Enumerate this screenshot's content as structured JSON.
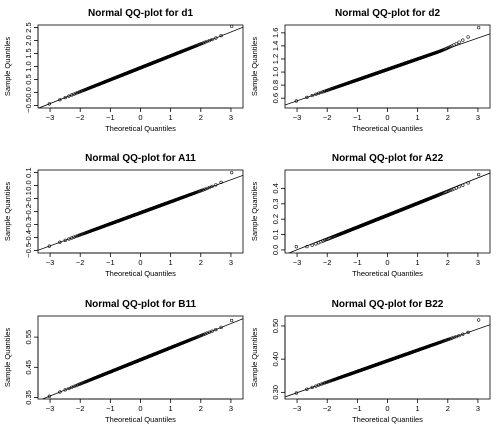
{
  "chart_data": [
    {
      "type": "scatter",
      "title": "Normal QQ-plot for d1",
      "xlabel": "Theoretical Quantiles",
      "ylabel": "Sample Quantiles",
      "xlim": [
        -3.4,
        3.4
      ],
      "ylim": [
        -0.6,
        2.6
      ],
      "xticks": [
        -3,
        -2,
        -1,
        0,
        1,
        2,
        3
      ],
      "yticks": [
        -0.5,
        0,
        0.5,
        1,
        1.5,
        2,
        2.5
      ],
      "ytick_labels": [
        "-0.5",
        "0.0",
        "0.5",
        "1.0",
        "1.5",
        "2.0",
        "2.5"
      ],
      "reference_line": {
        "intercept": 0.95,
        "slope": 0.46
      },
      "points": {
        "n": 400,
        "x_range": [
          -3.3,
          3.3
        ],
        "y_range": [
          -0.5,
          2.5
        ],
        "center": 0.95,
        "scale": 0.46,
        "lower_floor": -0.45,
        "upper_tail_start": 2.45,
        "upper_tail_bend": 0.15,
        "extreme_high": 2.55
      }
    },
    {
      "type": "scatter",
      "title": "Normal QQ-plot for d2",
      "xlabel": "Theoretical Quantiles",
      "ylabel": "Sample Quantiles",
      "xlim": [
        -3.4,
        3.4
      ],
      "ylim": [
        0.45,
        1.72
      ],
      "xticks": [
        -3,
        -2,
        -1,
        0,
        1,
        2,
        3
      ],
      "yticks": [
        0.6,
        0.8,
        1.0,
        1.2,
        1.4,
        1.6
      ],
      "ytick_labels": [
        "0.6",
        "0.8",
        "1.0",
        "1.2",
        "1.4",
        "1.6"
      ],
      "reference_line": {
        "intercept": 1.04,
        "slope": 0.16
      },
      "points": {
        "n": 400,
        "x_range": [
          -3.3,
          3.3
        ],
        "y_range": [
          0.5,
          1.65
        ],
        "center": 1.04,
        "scale": 0.16,
        "lower_floor": 0.52,
        "upper_tail_start": 1.6,
        "upper_tail_bend": 0.12,
        "extreme_high": 1.68
      }
    },
    {
      "type": "scatter",
      "title": "Normal QQ-plot for A11",
      "xlabel": "Theoretical Quantiles",
      "ylabel": "Sample Quantiles",
      "xlim": [
        -3.4,
        3.4
      ],
      "ylim": [
        -0.52,
        0.12
      ],
      "xticks": [
        -3,
        -2,
        -1,
        0,
        1,
        2,
        3
      ],
      "yticks": [
        -0.5,
        -0.4,
        -0.3,
        -0.2,
        -0.1,
        0,
        0.1
      ],
      "ytick_labels": [
        "-0.5",
        "-0.4",
        "-0.3",
        "-0.2",
        "-0.1",
        "0.0",
        "0.1"
      ],
      "reference_line": {
        "intercept": -0.21,
        "slope": 0.085
      },
      "points": {
        "n": 400,
        "x_range": [
          -3.3,
          3.3
        ],
        "y_range": [
          -0.5,
          0.1
        ],
        "center": -0.21,
        "scale": 0.085,
        "lower_floor": -0.475,
        "upper_tail_start": 2.1,
        "upper_tail_bend": 0.08,
        "extreme_high": 0.1
      }
    },
    {
      "type": "scatter",
      "title": "Normal QQ-plot for A22",
      "xlabel": "Theoretical Quantiles",
      "ylabel": "Sample Quantiles",
      "xlim": [
        -3.4,
        3.4
      ],
      "ylim": [
        -0.02,
        0.52
      ],
      "xticks": [
        -3,
        -2,
        -1,
        0,
        1,
        2,
        3
      ],
      "yticks": [
        0,
        0.1,
        0.2,
        0.3,
        0.4
      ],
      "ytick_labels": [
        "0.0",
        "0.1",
        "0.2",
        "0.3",
        "0.4"
      ],
      "reference_line": {
        "intercept": 0.235,
        "slope": 0.078
      },
      "points": {
        "n": 400,
        "x_range": [
          -3.3,
          3.3
        ],
        "y_range": [
          0.0,
          0.5
        ],
        "center": 0.225,
        "scale": 0.078,
        "lower_floor": 0.02,
        "upper_tail_start": 2.2,
        "upper_tail_bend": 0.05,
        "extreme_high": 0.49
      }
    },
    {
      "type": "scatter",
      "title": "Normal QQ-plot for B11",
      "xlabel": "Theoretical Quantiles",
      "ylabel": "Sample Quantiles",
      "xlim": [
        -3.4,
        3.4
      ],
      "ylim": [
        0.345,
        0.62
      ],
      "xticks": [
        -3,
        -2,
        -1,
        0,
        1,
        2,
        3
      ],
      "yticks": [
        0.35,
        0.45,
        0.55
      ],
      "ytick_labels": [
        "0.35",
        "0.45",
        "0.55"
      ],
      "reference_line": {
        "intercept": 0.475,
        "slope": 0.04
      },
      "points": {
        "n": 400,
        "x_range": [
          -3.3,
          3.3
        ],
        "y_range": [
          0.35,
          0.61
        ],
        "center": 0.475,
        "scale": 0.04,
        "lower_floor": 0.35,
        "upper_tail_start": 2.3,
        "upper_tail_bend": 0.02,
        "extreme_high": 0.605
      }
    },
    {
      "type": "scatter",
      "title": "Normal QQ-plot for B22",
      "xlabel": "Theoretical Quantiles",
      "ylabel": "Sample Quantiles",
      "xlim": [
        -3.4,
        3.4
      ],
      "ylim": [
        0.28,
        0.53
      ],
      "xticks": [
        -3,
        -2,
        -1,
        0,
        1,
        2,
        3
      ],
      "yticks": [
        0.3,
        0.4,
        0.5
      ],
      "ytick_labels": [
        "0.30",
        "0.40",
        "0.50"
      ],
      "reference_line": {
        "intercept": 0.395,
        "slope": 0.032
      },
      "points": {
        "n": 400,
        "x_range": [
          -3.3,
          3.3
        ],
        "y_range": [
          0.29,
          0.52
        ],
        "center": 0.395,
        "scale": 0.032,
        "lower_floor": 0.29,
        "upper_tail_start": 2.4,
        "upper_tail_bend": 0.01,
        "extreme_high": 0.518
      }
    }
  ]
}
